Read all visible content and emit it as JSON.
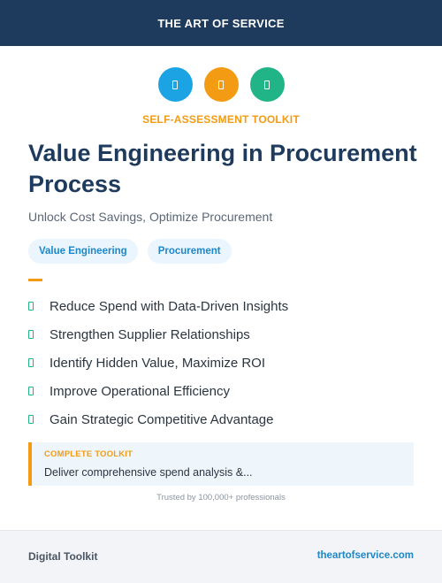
{
  "header": {
    "brand": "THE ART OF SERVICE"
  },
  "icons": [
    {
      "name": "document-icon",
      "color": "#1ba3e4"
    },
    {
      "name": "document-icon",
      "color": "#f39b12"
    },
    {
      "name": "document-icon",
      "color": "#20b486"
    }
  ],
  "kicker": "SELF-ASSESSMENT TOOLKIT",
  "title": "Value Engineering in Procurement Process",
  "subtitle": "Unlock Cost Savings, Optimize Procurement",
  "tags": [
    "Value Engineering",
    "Procurement"
  ],
  "benefits": [
    "Reduce Spend with Data-Driven Insights",
    "Strengthen Supplier Relationships",
    "Identify Hidden Value, Maximize ROI",
    "Improve Operational Efficiency",
    "Gain Strategic Competitive Advantage"
  ],
  "callout": {
    "label": "COMPLETE TOOLKIT",
    "text": "Deliver comprehensive spend analysis &..."
  },
  "trusted": "Trusted by 100,000+ professionals",
  "footer": {
    "left": "Digital Toolkit",
    "right": "theartofservice.com"
  },
  "colors": {
    "navy": "#1e3a5c",
    "accent_orange": "#f39b12",
    "accent_blue": "#1ba3e4",
    "accent_green": "#20b486"
  }
}
